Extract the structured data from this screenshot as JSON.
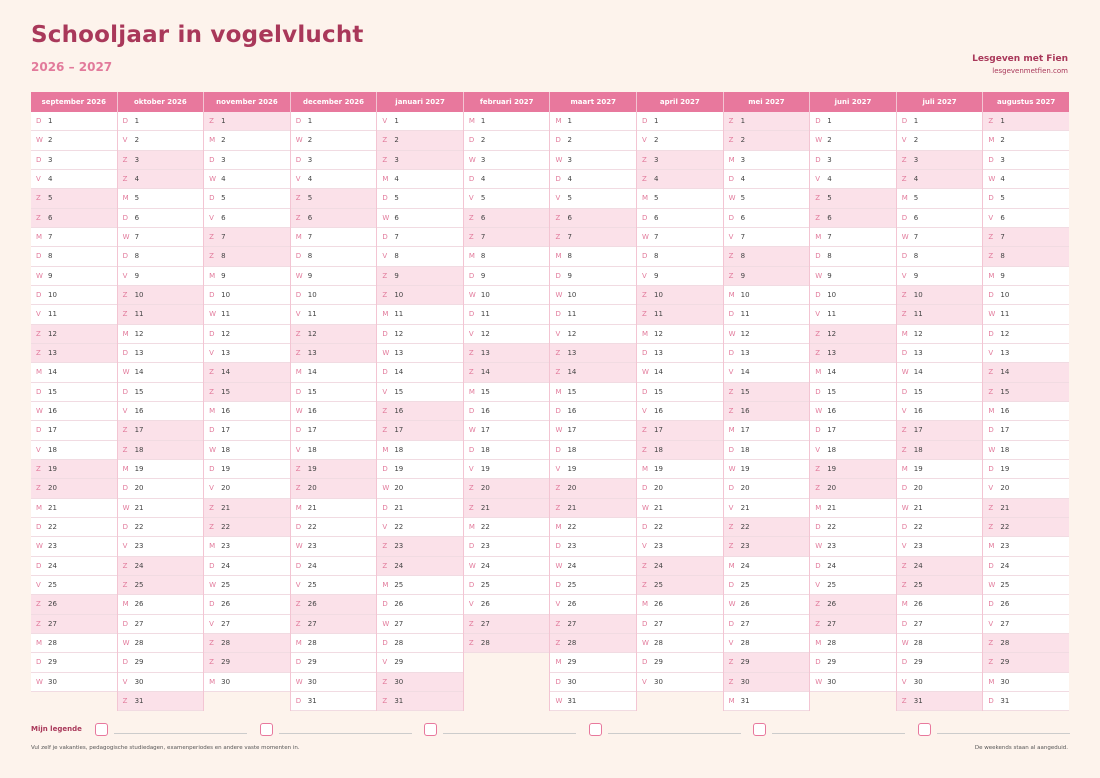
{
  "header": {
    "title": "Schooljaar in vogelvlucht",
    "subtitle": "2026 – 2027",
    "brand_name": "Lesgeven met Fien",
    "brand_url": "lesgevenmetfien.com"
  },
  "colors": {
    "accent": "#e8789d",
    "title": "#a9385a",
    "weekend": "#fbe1e9",
    "background": "#fdf3ec"
  },
  "months": [
    {
      "name": "september 2026",
      "first_weekday": 2,
      "days": 30
    },
    {
      "name": "oktober 2026",
      "first_weekday": 4,
      "days": 31
    },
    {
      "name": "november 2026",
      "first_weekday": 0,
      "days": 30
    },
    {
      "name": "december 2026",
      "first_weekday": 2,
      "days": 31
    },
    {
      "name": "januari 2027",
      "first_weekday": 5,
      "days": 31
    },
    {
      "name": "februari 2027",
      "first_weekday": 1,
      "days": 28
    },
    {
      "name": "maart 2027",
      "first_weekday": 1,
      "days": 31
    },
    {
      "name": "april 2027",
      "first_weekday": 4,
      "days": 30
    },
    {
      "name": "mei 2027",
      "first_weekday": 6,
      "days": 31
    },
    {
      "name": "juni 2027",
      "first_weekday": 2,
      "days": 30
    },
    {
      "name": "juli 2027",
      "first_weekday": 4,
      "days": 31
    },
    {
      "name": "augustus 2027",
      "first_weekday": 0,
      "days": 31
    }
  ],
  "weekday_letters": [
    "Z",
    "M",
    "D",
    "W",
    "D",
    "V",
    "Z"
  ],
  "weekend_indices": [
    0,
    6
  ],
  "legend": {
    "label": "Mijn legende",
    "slots": 6
  },
  "footer": {
    "note_left": "Vul zelf je vakanties, pedagogische studiedagen, examenperiodes en andere vaste momenten in.",
    "note_right": "De weekends staan al aangeduid."
  }
}
